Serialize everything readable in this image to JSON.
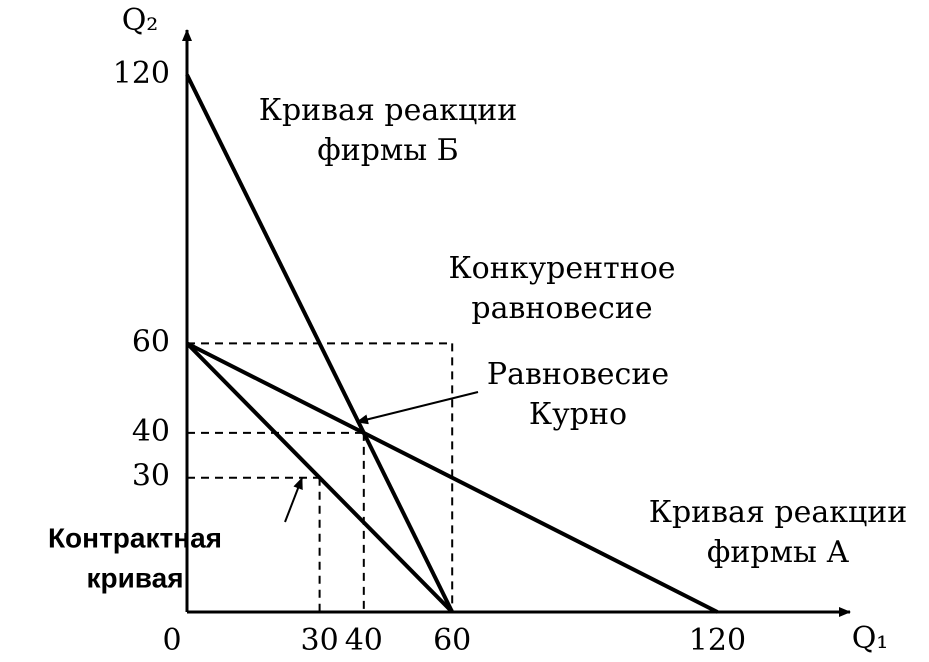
{
  "chart_data": {
    "type": "line",
    "x_label": "Q₁",
    "y_label": "Q₂",
    "xlim": [
      0,
      150
    ],
    "ylim": [
      0,
      130
    ],
    "xticks": [
      0,
      30,
      40,
      60,
      120
    ],
    "yticks": [
      30,
      40,
      60,
      120
    ],
    "color": "#000000",
    "series": [
      {
        "x": [
          0,
          60
        ],
        "values": [
          120,
          0
        ]
      },
      {
        "x": [
          0,
          120
        ],
        "values": [
          60,
          0
        ]
      },
      {
        "x": [
          0,
          60
        ],
        "values": [
          60,
          0
        ]
      }
    ],
    "points": [
      {
        "x": 60,
        "y": 60
      },
      {
        "x": 40,
        "y": 40
      },
      {
        "x": 30,
        "y": 30
      }
    ],
    "annotations": [
      [
        "Кривая реакции",
        "фирмы Б"
      ],
      [
        "Конкурентное",
        "равновесие"
      ],
      [
        "Равновесие",
        "Курно"
      ],
      [
        "Кривая реакции",
        "фирмы А"
      ],
      [
        "Контрактная",
        "кривая"
      ]
    ]
  }
}
